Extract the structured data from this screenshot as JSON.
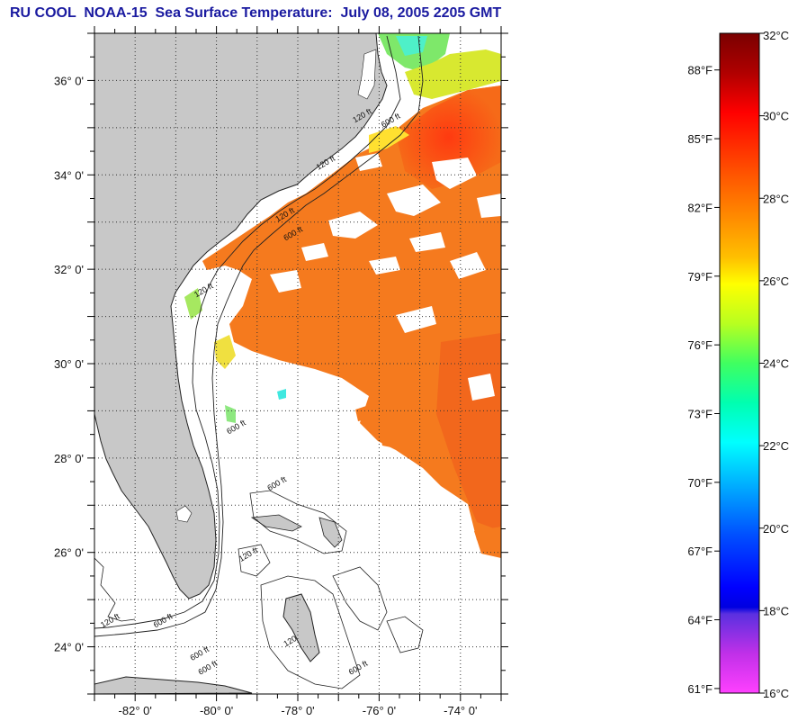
{
  "title": "RU COOL  NOAA-15  Sea Surface Temperature:  July 08, 2005 2205 GMT",
  "map": {
    "lon_range": [
      -83,
      -73
    ],
    "lat_range": [
      23,
      37
    ],
    "lat_ticks": [
      {
        "value": 36,
        "label": "36° 0'"
      },
      {
        "value": 34,
        "label": "34° 0'"
      },
      {
        "value": 32,
        "label": "32° 0'"
      },
      {
        "value": 30,
        "label": "30° 0'"
      },
      {
        "value": 28,
        "label": "28° 0'"
      },
      {
        "value": 26,
        "label": "26° 0'"
      },
      {
        "value": 24,
        "label": "24° 0'"
      }
    ],
    "lon_ticks": [
      {
        "value": -82,
        "label": "-82° 0'"
      },
      {
        "value": -80,
        "label": "-80° 0'"
      },
      {
        "value": -78,
        "label": "-78° 0'"
      },
      {
        "value": -76,
        "label": "-76° 0'"
      },
      {
        "value": -74,
        "label": "-74° 0'"
      }
    ],
    "grid": "dotted",
    "land_color": "#c8c8c8",
    "sst_main_color": "#f57a1e",
    "contour_labels": [
      {
        "text": "120 ft",
        "lon": -76.6,
        "lat": 35.1
      },
      {
        "text": "600 ft",
        "lon": -75.9,
        "lat": 35.0
      },
      {
        "text": "120 ft",
        "lon": -77.5,
        "lat": 34.1
      },
      {
        "text": "120 ft",
        "lon": -78.5,
        "lat": 33.0
      },
      {
        "text": "600 ft",
        "lon": -78.3,
        "lat": 32.6
      },
      {
        "text": "120 ft",
        "lon": -80.5,
        "lat": 31.4
      },
      {
        "text": "600 ft",
        "lon": -79.7,
        "lat": 28.5
      },
      {
        "text": "600 ft",
        "lon": -78.7,
        "lat": 27.3
      },
      {
        "text": "120 ft",
        "lon": -79.4,
        "lat": 25.8
      },
      {
        "text": "120 ft",
        "lon": -82.8,
        "lat": 24.4
      },
      {
        "text": "600 ft",
        "lon": -81.5,
        "lat": 24.4
      },
      {
        "text": "600 ft",
        "lon": -80.6,
        "lat": 23.7
      },
      {
        "text": "600 ft",
        "lon": -80.4,
        "lat": 23.4
      },
      {
        "text": "120",
        "lon": -78.3,
        "lat": 24.0
      },
      {
        "text": "600 ft",
        "lon": -76.7,
        "lat": 23.4
      }
    ]
  },
  "colorbar": {
    "min_c": 16,
    "max_c": 32,
    "celsius_ticks": [
      {
        "value": 32,
        "label": "32°C"
      },
      {
        "value": 30,
        "label": "30°C"
      },
      {
        "value": 28,
        "label": "28°C"
      },
      {
        "value": 26,
        "label": "26°C"
      },
      {
        "value": 24,
        "label": "24°C"
      },
      {
        "value": 22,
        "label": "22°C"
      },
      {
        "value": 20,
        "label": "20°C"
      },
      {
        "value": 18,
        "label": "18°C"
      },
      {
        "value": 16,
        "label": "16°C"
      }
    ],
    "fahrenheit_ticks": [
      {
        "value": 88,
        "label": "88°F"
      },
      {
        "value": 85,
        "label": "85°F"
      },
      {
        "value": 82,
        "label": "82°F"
      },
      {
        "value": 79,
        "label": "79°F"
      },
      {
        "value": 76,
        "label": "76°F"
      },
      {
        "value": 73,
        "label": "73°F"
      },
      {
        "value": 70,
        "label": "70°F"
      },
      {
        "value": 67,
        "label": "67°F"
      },
      {
        "value": 64,
        "label": "64°F"
      },
      {
        "value": 61,
        "label": "61°F"
      }
    ]
  }
}
